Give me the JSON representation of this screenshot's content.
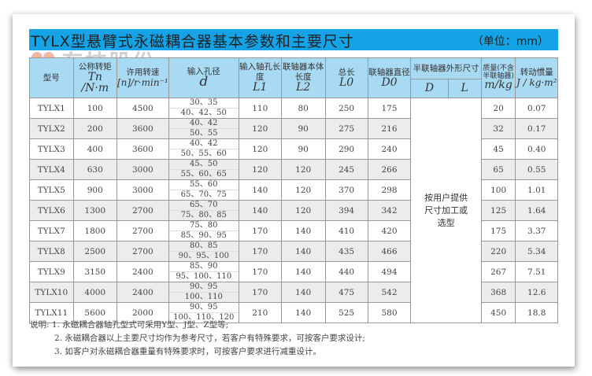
{
  "title": "TYLX型悬臂式永磁耦合器基本参数和主要尺寸",
  "unit": "（单位：mm）",
  "watermark": "东技股份",
  "headers": {
    "model": "型号",
    "torque": "公称转矩",
    "torque_sym": "Tn /N·m",
    "speed": "许用转速",
    "speed_sym": "[n]/r·min⁻¹",
    "bore": "输入孔径",
    "bore_sym": "d",
    "l1": "输入轴孔长度",
    "l1_sym": "L1",
    "l2": "联轴器本体长度",
    "l2_sym": "L2",
    "l0": "总长",
    "l0_sym": "L0",
    "d0": "联轴器直径",
    "d0_sym": "D0",
    "half": "半联轴器外形尺寸",
    "half_d": "D",
    "half_l": "L",
    "mass": "质量(不含半联轴器)",
    "mass_sym": "m/kg",
    "inertia": "转动惯量",
    "inertia_sym": "J / kg·m²"
  },
  "custom_note": "按用户提供尺寸加工或选型",
  "rows": [
    {
      "model": "TYLX1",
      "tn": "100",
      "n": "4500",
      "d1": "30、35",
      "d2": "40、42、50",
      "l1": "110",
      "l2": "80",
      "l0": "250",
      "d0": "175",
      "m": "20",
      "j": "0.07"
    },
    {
      "model": "TYLX2",
      "tn": "200",
      "n": "3600",
      "d1": "40、42",
      "d2": "50、55",
      "l1": "120",
      "l2": "90",
      "l0": "275",
      "d0": "216",
      "m": "32",
      "j": "0.17"
    },
    {
      "model": "TYLX3",
      "tn": "400",
      "n": "3600",
      "d1": "40、42",
      "d2": "50、55、60",
      "l1": "120",
      "l2": "90",
      "l0": "290",
      "d0": "240",
      "m": "45",
      "j": "0.40"
    },
    {
      "model": "TYLX4",
      "tn": "630",
      "n": "3000",
      "d1": "45、50",
      "d2": "55、60、65",
      "l1": "120",
      "l2": "120",
      "l0": "245",
      "d0": "266",
      "m": "65",
      "j": "0.55"
    },
    {
      "model": "TYLX5",
      "tn": "900",
      "n": "3000",
      "d1": "55、60",
      "d2": "65、70、75",
      "l1": "140",
      "l2": "120",
      "l0": "370",
      "d0": "298",
      "m": "100",
      "j": "1.01"
    },
    {
      "model": "TYLX6",
      "tn": "1300",
      "n": "2700",
      "d1": "65、70",
      "d2": "75、80、85",
      "l1": "140",
      "l2": "120",
      "l0": "394",
      "d0": "342",
      "m": "125",
      "j": "1.64"
    },
    {
      "model": "TYLX7",
      "tn": "1800",
      "n": "2700",
      "d1": "75、80",
      "d2": "85、90、95",
      "l1": "170",
      "l2": "140",
      "l0": "410",
      "d0": "420",
      "m": "175",
      "j": "3.37"
    },
    {
      "model": "TYLX8",
      "tn": "2500",
      "n": "2700",
      "d1": "80、85",
      "d2": "90、95、100",
      "l1": "170",
      "l2": "140",
      "l0": "435",
      "d0": "466",
      "m": "220",
      "j": "5.34"
    },
    {
      "model": "TYLX9",
      "tn": "3150",
      "n": "2400",
      "d1": "85、90",
      "d2": "95、100、110",
      "l1": "170",
      "l2": "140",
      "l0": "440",
      "d0": "494",
      "m": "267",
      "j": "7.51"
    },
    {
      "model": "TYLX10",
      "tn": "4000",
      "n": "2400",
      "d1": "90、95",
      "d2": "100、110",
      "l1": "170",
      "l2": "140",
      "l0": "475",
      "d0": "542",
      "m": "368",
      "j": "12.6"
    },
    {
      "model": "TYLX11",
      "tn": "5600",
      "n": "2000",
      "d1": "90、95",
      "d2": "100、110、120",
      "l1": "210",
      "l2": "140",
      "l0": "525",
      "d0": "580",
      "m": "450",
      "j": "18.8"
    }
  ],
  "notes": [
    "说明: 1. 永磁耦合器轴孔型式可采用Y型、J型、Z型等;",
    "2. 永磁耦合器以上主要尺寸均作为参考尺寸，若客户有特殊要求，可按客户要求设计;",
    "3. 如客户对永磁耦合器重量有特殊要求时，可按客户要求进行减重设计。"
  ]
}
